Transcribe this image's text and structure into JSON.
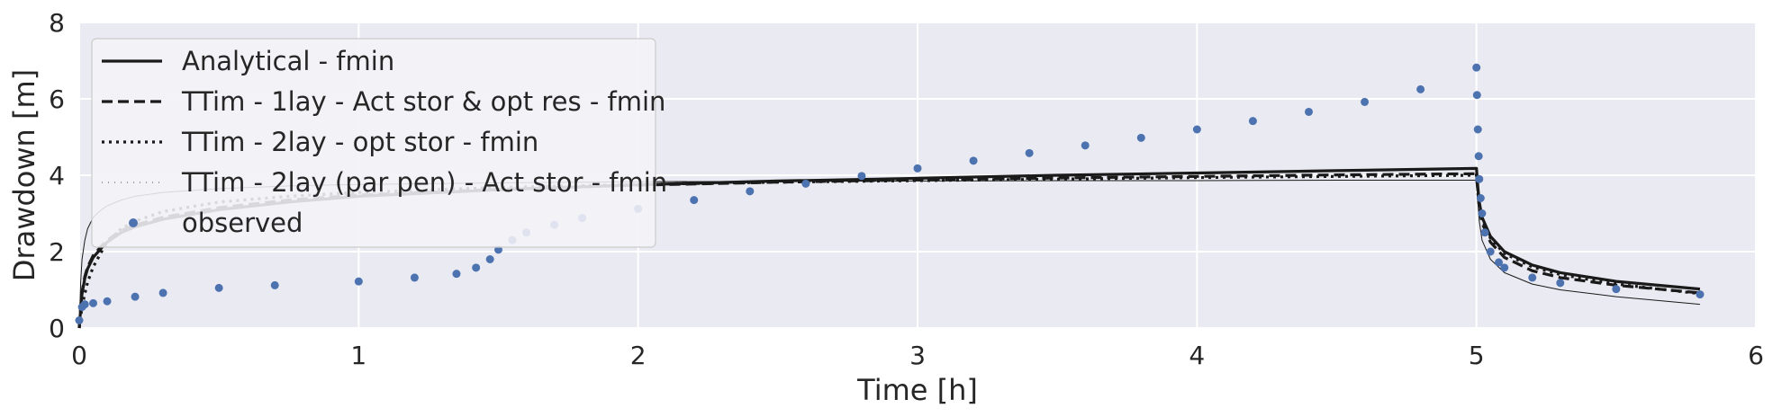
{
  "chart_data": {
    "type": "line",
    "title": "",
    "xlabel": "Time [h]",
    "ylabel": "Drawdown [m]",
    "xlim": [
      0,
      6
    ],
    "ylim": [
      0,
      8
    ],
    "xticks": [
      0,
      1,
      2,
      3,
      4,
      5,
      6
    ],
    "yticks": [
      0,
      2,
      4,
      6,
      8
    ],
    "grid": true,
    "background": "#eaeaf2",
    "legend_position": "upper-left",
    "series": [
      {
        "name": "Analytical - fmin",
        "style": "solid",
        "color": "#1a1a1a",
        "x": [
          0.0,
          0.005,
          0.01,
          0.02,
          0.03,
          0.05,
          0.08,
          0.1,
          0.15,
          0.2,
          0.3,
          0.5,
          0.75,
          1.0,
          1.5,
          2.0,
          2.5,
          3.0,
          3.5,
          4.0,
          4.5,
          5.0,
          5.005,
          5.01,
          5.02,
          5.05,
          5.1,
          5.2,
          5.3,
          5.5,
          5.8
        ],
        "y": [
          0.0,
          0.5,
          0.9,
          1.3,
          1.55,
          1.85,
          2.1,
          2.25,
          2.5,
          2.65,
          2.85,
          3.1,
          3.3,
          3.45,
          3.62,
          3.75,
          3.85,
          3.92,
          4.0,
          4.06,
          4.12,
          4.18,
          3.7,
          3.3,
          2.9,
          2.4,
          2.0,
          1.65,
          1.45,
          1.22,
          1.02
        ]
      },
      {
        "name": "TTim - 1lay - Act stor & opt res - fmin",
        "style": "dashed",
        "color": "#1a1a1a",
        "x": [
          0.0,
          0.005,
          0.01,
          0.02,
          0.03,
          0.05,
          0.08,
          0.1,
          0.15,
          0.2,
          0.3,
          0.5,
          0.75,
          1.0,
          1.5,
          2.0,
          2.5,
          3.0,
          3.5,
          4.0,
          4.5,
          5.0,
          5.005,
          5.01,
          5.02,
          5.05,
          5.1,
          5.2,
          5.3,
          5.5,
          5.8
        ],
        "y": [
          0.0,
          0.55,
          0.95,
          1.35,
          1.6,
          1.9,
          2.15,
          2.3,
          2.55,
          2.7,
          2.9,
          3.15,
          3.35,
          3.48,
          3.63,
          3.74,
          3.82,
          3.88,
          3.93,
          3.97,
          4.01,
          4.04,
          3.55,
          3.15,
          2.75,
          2.25,
          1.85,
          1.5,
          1.32,
          1.12,
          0.92
        ]
      },
      {
        "name": "TTim - 2lay - opt stor - fmin",
        "style": "dotted",
        "color": "#1a1a1a",
        "x": [
          0.0,
          0.005,
          0.01,
          0.02,
          0.03,
          0.05,
          0.08,
          0.1,
          0.15,
          0.2,
          0.3,
          0.5,
          0.75,
          1.0,
          1.5,
          2.0,
          2.5,
          3.0,
          3.5,
          4.0,
          4.5,
          5.0,
          5.005,
          5.01,
          5.02,
          5.05,
          5.1,
          5.2,
          5.3,
          5.5,
          5.8
        ],
        "y": [
          0.0,
          0.3,
          0.55,
          0.9,
          1.2,
          1.6,
          2.0,
          2.25,
          2.6,
          2.8,
          3.05,
          3.3,
          3.45,
          3.55,
          3.68,
          3.76,
          3.82,
          3.86,
          3.9,
          3.94,
          3.97,
          4.0,
          3.6,
          3.25,
          2.85,
          2.35,
          1.95,
          1.6,
          1.4,
          1.15,
          0.9
        ]
      },
      {
        "name": "TTim - 2lay (par pen) - Act stor - fmin",
        "style": "thin",
        "color": "#1a1a1a",
        "x": [
          0.0,
          0.005,
          0.01,
          0.02,
          0.03,
          0.05,
          0.08,
          0.1,
          0.15,
          0.2,
          0.3,
          0.5,
          0.75,
          1.0,
          1.5,
          2.0,
          2.5,
          3.0,
          3.5,
          4.0,
          4.5,
          5.0,
          5.005,
          5.01,
          5.02,
          5.05,
          5.1,
          5.2,
          5.3,
          5.5,
          5.8
        ],
        "y": [
          0.0,
          1.2,
          1.8,
          2.3,
          2.6,
          2.9,
          3.1,
          3.2,
          3.35,
          3.45,
          3.55,
          3.65,
          3.72,
          3.76,
          3.8,
          3.83,
          3.84,
          3.85,
          3.86,
          3.86,
          3.87,
          3.87,
          3.3,
          2.8,
          2.3,
          1.8,
          1.45,
          1.15,
          1.0,
          0.82,
          0.62
        ]
      },
      {
        "name": "observed",
        "style": "markers",
        "color": "#4c72b0",
        "x": [
          0.0,
          0.01,
          0.02,
          0.05,
          0.1,
          0.2,
          0.3,
          0.5,
          0.7,
          1.0,
          1.2,
          1.35,
          1.42,
          1.47,
          1.5,
          1.55,
          1.6,
          1.7,
          1.8,
          2.0,
          2.2,
          2.4,
          2.6,
          2.8,
          3.0,
          3.2,
          3.4,
          3.6,
          3.8,
          4.0,
          4.2,
          4.4,
          4.6,
          4.8,
          5.0,
          5.002,
          5.005,
          5.008,
          5.01,
          5.015,
          5.02,
          5.03,
          5.05,
          5.08,
          5.1,
          5.2,
          5.3,
          5.5,
          5.8
        ],
        "y": [
          0.2,
          0.55,
          0.62,
          0.65,
          0.7,
          0.82,
          0.92,
          1.05,
          1.12,
          1.22,
          1.32,
          1.42,
          1.58,
          1.8,
          2.05,
          2.3,
          2.5,
          2.7,
          2.88,
          3.12,
          3.35,
          3.58,
          3.78,
          3.98,
          4.18,
          4.38,
          4.58,
          4.78,
          4.98,
          5.2,
          5.42,
          5.66,
          5.92,
          6.25,
          6.82,
          6.1,
          5.2,
          4.5,
          3.9,
          3.4,
          3.0,
          2.5,
          2.0,
          1.72,
          1.58,
          1.32,
          1.18,
          1.02,
          0.88
        ]
      }
    ]
  }
}
